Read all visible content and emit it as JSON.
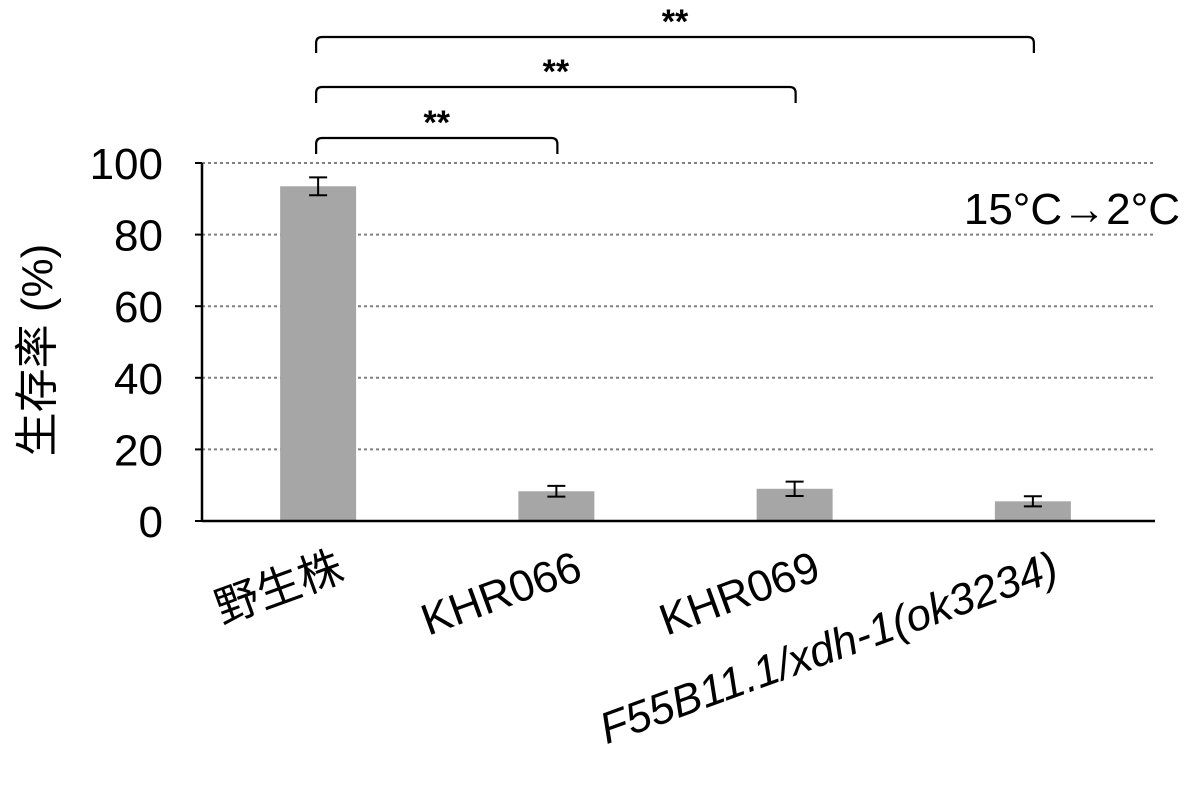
{
  "chart_data": {
    "type": "bar",
    "categories": [
      "野生株",
      "KHR066",
      "KHR069",
      "F55B11.1/xdh-1(ok3234)"
    ],
    "category_italic": [
      false,
      false,
      false,
      true
    ],
    "values": [
      93.5,
      8.3,
      9.0,
      5.5
    ],
    "errors": [
      2.5,
      1.5,
      2.0,
      1.4
    ],
    "ylabel": "生存率 (%)",
    "xlabel": "",
    "ylim": [
      0,
      100
    ],
    "yticks": [
      0,
      20,
      40,
      60,
      80,
      100
    ],
    "grid": "dotted horizontal",
    "annotation": "15°C→2°C",
    "significance": [
      {
        "from": 0,
        "to": 1,
        "label": "**"
      },
      {
        "from": 0,
        "to": 2,
        "label": "**"
      },
      {
        "from": 0,
        "to": 3,
        "label": "**"
      }
    ],
    "bar_color": "#a6a6a6",
    "grid_color": "#808080",
    "axis_color": "#000000"
  }
}
